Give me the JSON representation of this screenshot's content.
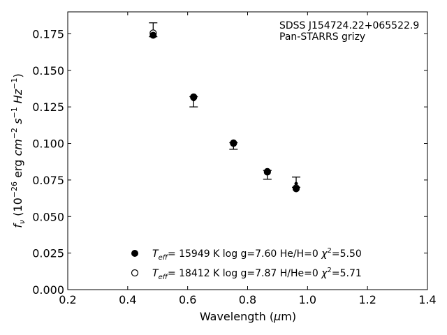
{
  "chart_data": {
    "type": "scatter",
    "title": "",
    "xlabel": "Wavelength (μm)",
    "ylabel": "f_ν (10^-26 erg cm^-2 s^-1 Hz^-1)",
    "xlim": [
      0.2,
      1.4
    ],
    "ylim": [
      0.0,
      0.19
    ],
    "xticks": [
      0.2,
      0.4,
      0.6,
      0.8,
      1.0,
      1.2,
      1.4
    ],
    "xtick_labels": [
      "0.2",
      "0.4",
      "0.6",
      "0.8",
      "1.0",
      "1.2",
      "1.4"
    ],
    "yticks": [
      0.0,
      0.025,
      0.05,
      0.075,
      0.1,
      0.125,
      0.15,
      0.175
    ],
    "ytick_labels": [
      "0.000",
      "0.025",
      "0.050",
      "0.075",
      "0.100",
      "0.125",
      "0.150",
      "0.175"
    ],
    "grid": false,
    "annotation": [
      "SDSS J154724.22+065522.9",
      "Pan-STARRS grizy"
    ],
    "observed": {
      "x": [
        0.485,
        0.62,
        0.753,
        0.866,
        0.962
      ],
      "y": [
        0.1745,
        0.13,
        0.0995,
        0.0805,
        0.0725
      ],
      "yerr_low": [
        0.0015,
        0.005,
        0.0035,
        0.005,
        0.0025
      ],
      "yerr_high": [
        0.008,
        0.002,
        0.001,
        0.001,
        0.0045
      ]
    },
    "series": [
      {
        "name": "T_eff= 15949 K  log g=7.60  He/H=0  χ²=5.50",
        "marker": "filled-circle",
        "x": [
          0.485,
          0.62,
          0.753,
          0.866,
          0.962
        ],
        "y": [
          0.174,
          0.1315,
          0.1,
          0.0808,
          0.069
        ]
      },
      {
        "name": "T_eff= 18412 K  log g=7.87  H/He=0  χ²=5.71",
        "marker": "open-circle",
        "x": [
          0.485,
          0.62,
          0.753,
          0.866,
          0.962
        ],
        "y": [
          0.1755,
          0.1318,
          0.1003,
          0.0805,
          0.0695
        ]
      }
    ],
    "legend_position": "lower-center"
  }
}
